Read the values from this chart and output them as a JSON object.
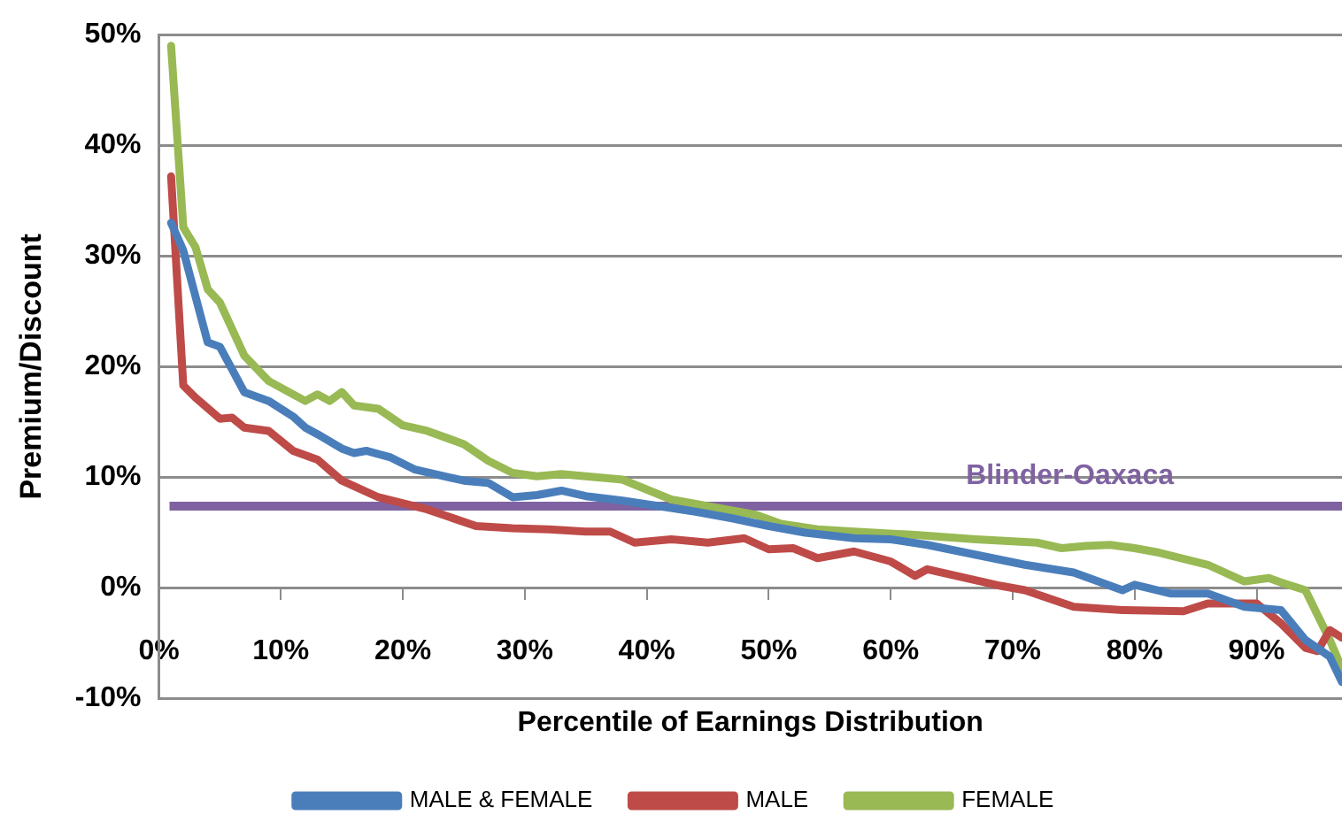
{
  "chart_data": {
    "type": "line",
    "xlabel": "Percentile of Earnings Distribution",
    "ylabel": "Premium/Discount",
    "xlim": [
      0,
      97
    ],
    "xticks": [
      {
        "value": 0,
        "label": "0%"
      },
      {
        "value": 10,
        "label": "10%"
      },
      {
        "value": 20,
        "label": "20%"
      },
      {
        "value": 30,
        "label": "30%"
      },
      {
        "value": 40,
        "label": "40%"
      },
      {
        "value": 50,
        "label": "50%"
      },
      {
        "value": 60,
        "label": "60%"
      },
      {
        "value": 70,
        "label": "70%"
      },
      {
        "value": 80,
        "label": "80%"
      },
      {
        "value": 90,
        "label": "90%"
      }
    ],
    "ylim": [
      -10,
      50
    ],
    "yticks": [
      {
        "value": -10,
        "label": "-10%"
      },
      {
        "value": 0,
        "label": "0%"
      },
      {
        "value": 10,
        "label": "10%"
      },
      {
        "value": 20,
        "label": "20%"
      },
      {
        "value": 30,
        "label": "30%"
      },
      {
        "value": 40,
        "label": "40%"
      },
      {
        "value": 50,
        "label": "50%"
      }
    ],
    "grid": "y",
    "legend": "bottom",
    "marker": "none",
    "line_style": "solid",
    "series": [
      {
        "name": "MALE & FEMALE",
        "color": "#4a7ebb",
        "x": [
          1,
          2,
          4,
          5,
          7,
          9,
          11,
          12,
          13,
          15,
          16,
          17,
          19,
          21,
          25,
          27,
          29,
          31,
          33,
          35,
          38,
          41,
          44,
          47,
          50,
          53,
          57,
          60,
          63,
          67,
          71,
          75,
          79,
          80,
          83,
          86,
          89,
          92,
          94,
          96,
          97
        ],
        "values": [
          33,
          30.5,
          22.2,
          21.8,
          17.7,
          16.9,
          15.5,
          14.5,
          13.9,
          12.6,
          12.2,
          12.4,
          11.8,
          10.7,
          9.7,
          9.5,
          8.2,
          8.4,
          8.8,
          8.3,
          7.9,
          7.4,
          6.9,
          6.3,
          5.6,
          5,
          4.5,
          4.4,
          3.9,
          3,
          2.1,
          1.4,
          -0.2,
          0.3,
          -0.5,
          -0.5,
          -1.7,
          -2,
          -4.7,
          -6.2,
          -8.5
        ]
      },
      {
        "name": "MALE",
        "color": "#be4b48",
        "x": [
          1,
          2,
          3,
          5,
          6,
          7,
          9,
          11,
          13,
          15,
          18,
          22,
          26,
          29,
          32,
          35,
          37,
          39,
          42,
          45,
          48,
          50,
          52,
          54,
          57,
          60,
          62,
          63,
          69,
          71,
          75,
          79,
          84,
          86,
          90,
          92,
          94,
          95,
          96,
          97
        ],
        "values": [
          37.2,
          18.3,
          17.2,
          15.3,
          15.4,
          14.5,
          14.2,
          12.4,
          11.6,
          9.7,
          8.2,
          7.1,
          5.6,
          5.4,
          5.3,
          5.1,
          5.1,
          4.1,
          4.4,
          4.1,
          4.5,
          3.5,
          3.6,
          2.7,
          3.3,
          2.4,
          1.1,
          1.7,
          0.2,
          -0.2,
          -1.7,
          -2,
          -2.1,
          -1.4,
          -1.4,
          -3.2,
          -5.4,
          -5.7,
          -3.8,
          -4.5
        ]
      },
      {
        "name": "FEMALE",
        "color": "#98b954",
        "x": [
          1,
          2,
          3,
          4,
          5,
          7,
          9,
          10,
          12,
          13,
          14,
          15,
          16,
          18,
          20,
          22,
          25,
          27,
          29,
          31,
          33,
          38,
          40,
          42,
          45,
          49,
          51,
          54,
          57,
          62,
          67,
          72,
          74,
          76,
          78,
          80,
          82,
          86,
          89,
          91,
          92,
          94,
          96,
          97
        ],
        "values": [
          49,
          32.6,
          30.8,
          27,
          25.8,
          21,
          18.7,
          18.1,
          16.9,
          17.5,
          16.9,
          17.7,
          16.5,
          16.2,
          14.7,
          14.2,
          13,
          11.5,
          10.4,
          10.1,
          10.3,
          9.8,
          8.9,
          8,
          7.4,
          6.6,
          5.8,
          5.3,
          5.1,
          4.8,
          4.4,
          4.1,
          3.6,
          3.8,
          3.9,
          3.6,
          3.2,
          2.1,
          0.6,
          0.9,
          0.5,
          -0.2,
          -4.7,
          -7.3
        ]
      }
    ],
    "ref_lines": [
      {
        "axis": "y",
        "value": 7.4,
        "label": "Blinder-Oaxaca",
        "color": "#7f62a1"
      }
    ]
  }
}
